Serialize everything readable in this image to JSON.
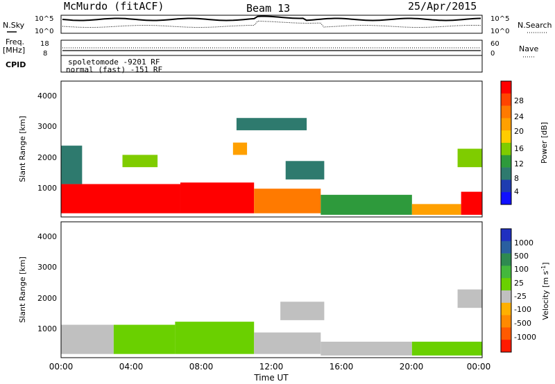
{
  "header": {
    "station": "McMurdo (fitACF)",
    "beam": "Beam 13",
    "date": "25/Apr/2015"
  },
  "noise_panel": {
    "left_label": "N.Sky",
    "right_label": "N.Search",
    "left_ticks": [
      "10^5",
      "10^0"
    ],
    "right_ticks": [
      "10^5",
      "10^0"
    ]
  },
  "freq_panel": {
    "left_label_1": "Freq.",
    "left_label_2": "[MHz]",
    "left_ticks": [
      "18",
      "8"
    ],
    "right_label": "Nave",
    "right_ticks": [
      "60",
      "0"
    ]
  },
  "cpid": {
    "label": "CPID",
    "entry_1": "spoletomode -9201 RF",
    "entry_2": "normal (fast) -151 RF"
  },
  "power_panel": {
    "ylabel": "Slant Range [km]",
    "yticks": [
      "4000",
      "3000",
      "2000",
      "1000"
    ],
    "colorbar_label": "Power [dB]",
    "colorbar_ticks": [
      "28",
      "24",
      "20",
      "16",
      "12",
      "8",
      "4"
    ],
    "colorbar_colors": [
      "#ff0000",
      "#ff4400",
      "#ff7a00",
      "#ffa000",
      "#ffcc00",
      "#7fcc00",
      "#2e9a3c",
      "#2e7a6e",
      "#1e3cb0",
      "#1010ff"
    ]
  },
  "velocity_panel": {
    "ylabel": "Slant Range [km]",
    "yticks": [
      "4000",
      "3000",
      "2000",
      "1000"
    ],
    "colorbar_label": "Velocity [m s",
    "colorbar_label_sup": "-1",
    "colorbar_label_end": "]",
    "colorbar_ticks": [
      "1000",
      "500",
      "100",
      "25",
      "-25",
      "-100",
      "-500",
      "-1000"
    ],
    "colorbar_colors": [
      "#2030c0",
      "#2a5fa0",
      "#2e8a50",
      "#44b83c",
      "#6ad000",
      "#c0c0c0",
      "#ffb000",
      "#ff8a00",
      "#ff5a00",
      "#ff1a00"
    ]
  },
  "x_axis": {
    "ticks": [
      "00:00",
      "04:00",
      "08:00",
      "12:00",
      "16:00",
      "20:00",
      "00:00"
    ],
    "label": "Time UT"
  },
  "chart_data": [
    {
      "type": "heatmap",
      "title": "Power",
      "xlabel": "Time UT",
      "ylabel": "Slant Range [km]",
      "xlim": [
        0,
        24
      ],
      "ylim": [
        180,
        4600
      ],
      "colorbar": "Power [dB]",
      "clim": [
        0,
        30
      ],
      "cells": [
        {
          "t0": 0.0,
          "t1": 6.8,
          "r0": 300,
          "r1": 1250,
          "v": 29
        },
        {
          "t0": 6.8,
          "t1": 11.0,
          "r0": 300,
          "r1": 1300,
          "v": 27
        },
        {
          "t0": 11.0,
          "t1": 14.8,
          "r0": 300,
          "r1": 1100,
          "v": 22
        },
        {
          "t0": 14.8,
          "t1": 20.0,
          "r0": 250,
          "r1": 900,
          "v": 10
        },
        {
          "t0": 20.0,
          "t1": 22.8,
          "r0": 250,
          "r1": 600,
          "v": 18
        },
        {
          "t0": 22.8,
          "t1": 24.0,
          "r0": 250,
          "r1": 1000,
          "v": 27
        },
        {
          "t0": 0.0,
          "t1": 1.2,
          "r0": 1250,
          "r1": 2500,
          "v": 6
        },
        {
          "t0": 3.5,
          "t1": 5.5,
          "r0": 1800,
          "r1": 2200,
          "v": 14
        },
        {
          "t0": 9.8,
          "t1": 10.6,
          "r0": 2200,
          "r1": 2600,
          "v": 18
        },
        {
          "t0": 12.8,
          "t1": 15.0,
          "r0": 1400,
          "r1": 2000,
          "v": 6
        },
        {
          "t0": 22.6,
          "t1": 24.0,
          "r0": 1800,
          "r1": 2400,
          "v": 12
        },
        {
          "t0": 10.0,
          "t1": 14.0,
          "r0": 3000,
          "r1": 3400,
          "v": 6
        }
      ]
    },
    {
      "type": "heatmap",
      "title": "Velocity",
      "xlabel": "Time UT",
      "ylabel": "Slant Range [km]",
      "xlim": [
        0,
        24
      ],
      "ylim": [
        180,
        4600
      ],
      "colorbar": "Velocity [m s-1]",
      "clim": [
        -1000,
        1000
      ],
      "cells": [
        {
          "t0": 0.0,
          "t1": 3.0,
          "r0": 300,
          "r1": 1250,
          "v": -150
        },
        {
          "t0": 3.0,
          "t1": 6.5,
          "r0": 300,
          "r1": 1250,
          "v": 60
        },
        {
          "t0": 6.5,
          "t1": 11.0,
          "r0": 300,
          "r1": 1350,
          "v": 0
        },
        {
          "t0": 11.0,
          "t1": 14.8,
          "r0": 300,
          "r1": 1000,
          "v": -60
        },
        {
          "t0": 14.8,
          "t1": 20.0,
          "r0": 250,
          "r1": 700,
          "v": -120
        },
        {
          "t0": 20.0,
          "t1": 24.0,
          "r0": 250,
          "r1": 700,
          "v": 60
        },
        {
          "t0": 12.5,
          "t1": 15.0,
          "r0": 1400,
          "r1": 2000,
          "v": -150
        },
        {
          "t0": 22.6,
          "t1": 24.0,
          "r0": 1800,
          "r1": 2400,
          "v": -150
        }
      ]
    }
  ]
}
